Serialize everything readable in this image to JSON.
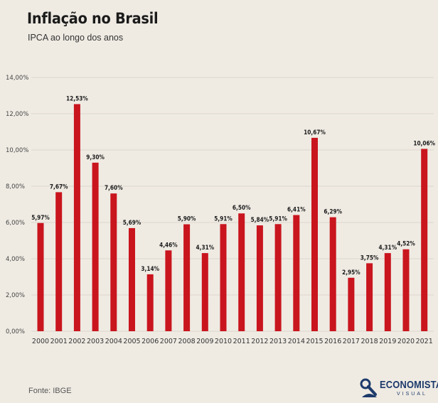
{
  "title": "Inflação no Brasil",
  "subtitle": "IPCA ao longo dos anos",
  "source": "Fonte: IBGE",
  "logo": {
    "name": "ECONOMISTA",
    "sub": "VISUAL"
  },
  "colors": {
    "bar": "#c9151e",
    "grid": "#dcd6cc",
    "text": "#1b1b1b"
  },
  "chart_data": {
    "type": "bar",
    "categories": [
      "2000",
      "2001",
      "2002",
      "2003",
      "2004",
      "2005",
      "2006",
      "2007",
      "2008",
      "2009",
      "2010",
      "2011",
      "2012",
      "2013",
      "2014",
      "2015",
      "2016",
      "2017",
      "2018",
      "2019",
      "2020",
      "2021"
    ],
    "values": [
      5.97,
      7.67,
      12.53,
      9.3,
      7.6,
      5.69,
      3.14,
      4.46,
      5.9,
      4.31,
      5.91,
      6.5,
      5.84,
      5.91,
      6.41,
      10.67,
      6.29,
      2.95,
      3.75,
      4.31,
      4.52,
      10.06
    ],
    "value_labels": [
      "5,97%",
      "7,67%",
      "12,53%",
      "9,30%",
      "7,60%",
      "5,69%",
      "3,14%",
      "4,46%",
      "5,90%",
      "4,31%",
      "5,91%",
      "6,50%",
      "5,84%",
      "5,91%",
      "6,41%",
      "10,67%",
      "6,29%",
      "2,95%",
      "3,75%",
      "4,31%",
      "4,52%",
      "10,06%"
    ],
    "yticks": [
      0,
      2,
      4,
      6,
      8,
      10,
      12,
      14
    ],
    "ytick_labels": [
      "0,00%",
      "2,00%",
      "4,00%",
      "6,00%",
      "8,00%",
      "10,00%",
      "12,00%",
      "14,00%"
    ],
    "ylim": [
      0,
      14
    ],
    "grid": true,
    "legend": "none"
  }
}
